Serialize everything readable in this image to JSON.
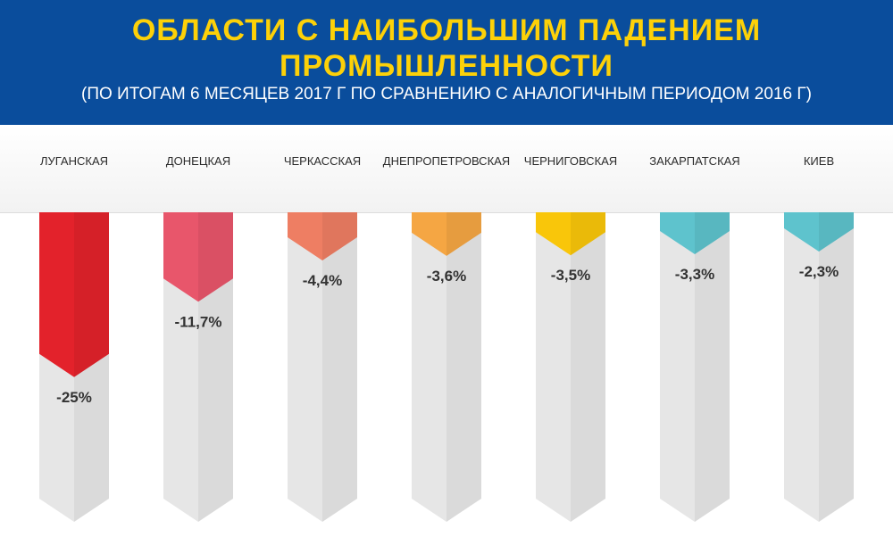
{
  "header": {
    "title_line1": "ОБЛАСТИ С НАИБОЛЬШИМ ПАДЕНИЕМ",
    "title_line2": "ПРОМЫШЛЕННОСТИ",
    "subtitle": "(ПО ИТОГАМ 6 МЕСЯЦЕВ 2017 Г ПО СРАВНЕНИЮ С АНАЛОГИЧНЫМ ПЕРИОДОМ 2016 Г)"
  },
  "colors": {
    "header_bg": "#0a4d9c",
    "title": "#fdd108",
    "bar_bg": "#e6e6e6"
  },
  "chart_data": {
    "type": "bar",
    "title": "ОБЛАСТИ С НАИБОЛЬШИМ ПАДЕНИЕМ ПРОМЫШЛЕННОСТИ",
    "subtitle": "(ПО ИТОГАМ 6 МЕСЯЦЕВ 2017 Г ПО СРАВНЕНИЮ С АНАЛОГИЧНЫМ ПЕРИОДОМ 2016 Г)",
    "categories": [
      "ЛУГАНСКАЯ",
      "ДОНЕЦКАЯ",
      "ЧЕРКАССКАЯ",
      "ДНЕПРОПЕТРОВСКАЯ",
      "ЧЕРНИГОВСКАЯ",
      "ЗАКАРПАТСКАЯ",
      "КИЕВ"
    ],
    "values": [
      -25,
      -11.7,
      -4.4,
      -3.6,
      -3.5,
      -3.3,
      -2.3
    ],
    "value_labels": [
      "-25%",
      "-11,7%",
      "-4,4%",
      "-3,6%",
      "-3,5%",
      "-3,3%",
      "-2,3%"
    ],
    "colors": [
      "#e3222b",
      "#e8566b",
      "#ee7e63",
      "#f5a643",
      "#f9c60a",
      "#5ec3cd",
      "#5ec3cd"
    ],
    "unit": "%"
  }
}
